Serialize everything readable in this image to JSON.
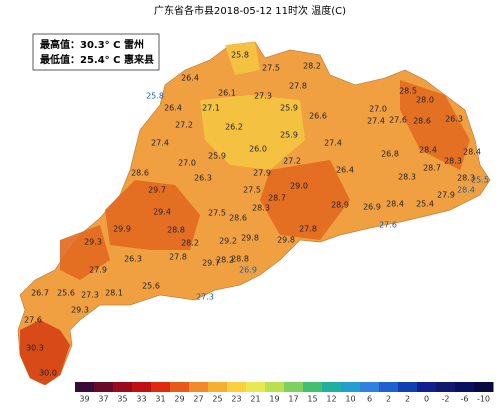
{
  "title": "广东省各市县2018-05-12 11时次 温度(C)",
  "summary": {
    "max": "最高值：30.3° C 雷州",
    "min": "最低值：25.4° C 惠来县"
  },
  "stations": [
    "25.8",
    "27.5",
    "28.2",
    "26.4",
    "27.8",
    "28.5",
    "25.8",
    "26.1",
    "27.3",
    "28.0",
    "26.4",
    "27.1",
    "25.9",
    "26.6",
    "27.0",
    "27.4",
    "27.6",
    "28.6",
    "26.3",
    "27.2",
    "26.2",
    "25.9",
    "27.4",
    "28.4",
    "27.4",
    "26.0",
    "25.9",
    "26.8",
    "28.4",
    "27.0",
    "27.2",
    "28.3",
    "28.6",
    "26.3",
    "27.9",
    "26.4",
    "28.7",
    "29.7",
    "29.0",
    "28.3",
    "28.3",
    "25.5",
    "27.9",
    "28.4",
    "27.5",
    "28.7",
    "29.4",
    "28.9",
    "26.9",
    "28.4",
    "25.4",
    "27.5",
    "28.3",
    "28.8",
    "28.6",
    "27.6",
    "27.8",
    "29.9",
    "29.8",
    "29.3",
    "28.2",
    "29.2",
    "29.8",
    "28.2",
    "28.8",
    "27.8",
    "26.3",
    "29.7",
    "26.9",
    "27.9",
    "26.7",
    "25.6",
    "27.3",
    "28.1",
    "25.6",
    "27.3",
    "29.3",
    "27.6",
    "30.3",
    "30.0"
  ],
  "colorbar": {
    "labels": [
      "39",
      "37",
      "35",
      "33",
      "31",
      "29",
      "27",
      "25",
      "23",
      "21",
      "19",
      "17",
      "15",
      "12",
      "10",
      "6",
      "2",
      "2",
      "0",
      "-2",
      "-6",
      "-10"
    ],
    "colors": [
      "#3a0a3a",
      "#6a0a2a",
      "#9a0a1a",
      "#c01010",
      "#e02a10",
      "#e85a1a",
      "#f08a2a",
      "#f5b030",
      "#f8d040",
      "#e8e850",
      "#b8e050",
      "#80d060",
      "#40c070",
      "#20b0a0",
      "#20a0d0",
      "#3080e0",
      "#2060d0",
      "#1040b0",
      "#102090",
      "#101870",
      "#0a1060",
      "#080a40"
    ]
  }
}
